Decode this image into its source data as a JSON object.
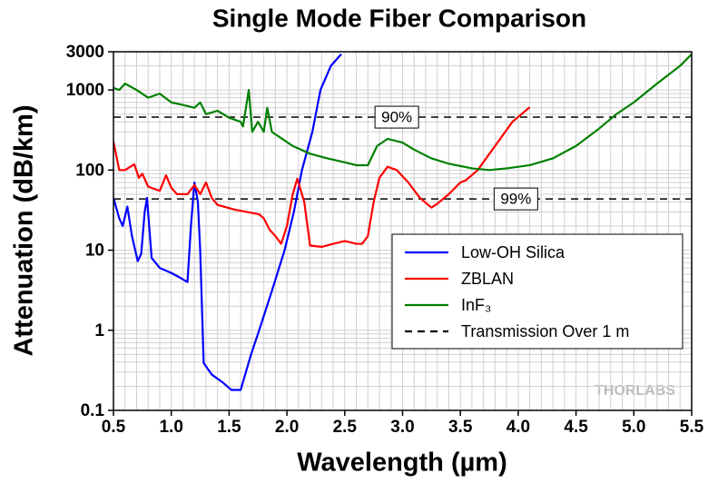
{
  "chart_data": {
    "type": "line",
    "title": "Single Mode Fiber Comparison",
    "x_label": "Wavelength (µm)",
    "y_label": "Attenuation (dB/km)",
    "y_scale": "log",
    "grid": true,
    "legend": "right",
    "watermark": "THORLABS",
    "xlim": [
      0.5,
      5.5
    ],
    "xticks": [
      0.5,
      {
        "value": 1,
        "label": "1.0"
      },
      1.5,
      {
        "value": 2,
        "label": "2.0"
      },
      2.5,
      {
        "value": 3,
        "label": "3.0"
      },
      3.5,
      {
        "value": 4,
        "label": "4.0"
      },
      4.5,
      {
        "value": 5,
        "label": "5.0"
      },
      5.5
    ],
    "ylim": [
      0.1,
      3000
    ],
    "yticks": [
      0.1,
      1,
      10,
      100,
      1000,
      3000
    ],
    "series": [
      {
        "name": "Low-OH Silica",
        "color": "#0000ff",
        "x": [
          0.5,
          0.55,
          0.58,
          0.62,
          0.66,
          0.71,
          0.74,
          0.77,
          0.79,
          0.83,
          0.9,
          1.0,
          1.08,
          1.14,
          1.17,
          1.2,
          1.23,
          1.25,
          1.28,
          1.35,
          1.45,
          1.52,
          1.6,
          1.69,
          1.76,
          1.87,
          1.98,
          2.06,
          2.13,
          2.22,
          2.29,
          2.38,
          2.47
        ],
        "values": [
          45,
          25,
          20,
          35,
          15,
          7.3,
          9,
          30,
          45,
          8,
          6,
          5.2,
          4.5,
          4,
          20,
          70,
          40,
          10,
          0.39,
          0.28,
          0.22,
          0.18,
          0.18,
          0.5,
          1.0,
          3.1,
          10,
          30,
          100,
          300,
          1000,
          2000,
          2800
        ]
      },
      {
        "name": "ZBLAN",
        "color": "#ff0000",
        "x": [
          0.5,
          0.55,
          0.6,
          0.68,
          0.72,
          0.75,
          0.8,
          0.9,
          0.955,
          1.0,
          1.05,
          1.14,
          1.2,
          1.25,
          1.3,
          1.35,
          1.4,
          1.55,
          1.76,
          1.8,
          1.85,
          1.9,
          1.95,
          2.0,
          2.05,
          2.09,
          2.15,
          2.2,
          2.3,
          2.4,
          2.5,
          2.6,
          2.65,
          2.7,
          2.75,
          2.8,
          2.87,
          2.95,
          3.05,
          3.15,
          3.25,
          3.3,
          3.4,
          3.5,
          3.55,
          3.65,
          3.8,
          3.95,
          4.1
        ],
        "values": [
          227,
          100,
          100,
          118,
          80,
          90,
          62,
          55,
          86,
          60,
          50,
          50,
          65,
          50,
          70,
          45,
          36.7,
          32,
          28,
          25,
          18,
          15,
          12,
          20,
          50,
          78,
          40,
          11.4,
          11,
          12,
          13,
          12,
          12,
          15,
          40,
          80,
          110,
          100,
          70,
          45,
          34,
          38,
          50,
          70,
          75,
          100,
          200,
          400,
          610
        ]
      },
      {
        "name": "InF₃",
        "color": "#008000",
        "x": [
          0.5,
          0.55,
          0.6,
          0.7,
          0.8,
          0.9,
          1.0,
          1.1,
          1.2,
          1.25,
          1.3,
          1.4,
          1.5,
          1.6,
          1.62,
          1.67,
          1.7,
          1.75,
          1.8,
          1.83,
          1.87,
          1.95,
          2.05,
          2.2,
          2.35,
          2.5,
          2.6,
          2.7,
          2.78,
          2.87,
          3.0,
          3.1,
          3.25,
          3.4,
          3.6,
          3.75,
          3.9,
          4.1,
          4.3,
          4.5,
          4.7,
          4.85,
          5.0,
          5.2,
          5.4,
          5.5
        ],
        "values": [
          1060,
          1000,
          1200,
          1000,
          800,
          900,
          700,
          650,
          600,
          700,
          500,
          550,
          450,
          400,
          350,
          1000,
          300,
          400,
          300,
          600,
          300,
          250,
          200,
          160,
          140,
          125,
          115,
          115,
          200,
          245,
          220,
          180,
          140,
          120,
          105,
          100,
          105,
          115,
          140,
          200,
          330,
          500,
          700,
          1200,
          2000,
          2800
        ]
      }
    ],
    "reference_lines": {
      "name": "Transmission Over 1 m",
      "color": "#000000",
      "lines": [
        {
          "label": "90%",
          "value": 457.6
        },
        {
          "label": "99%",
          "value": 43.6
        }
      ]
    }
  }
}
